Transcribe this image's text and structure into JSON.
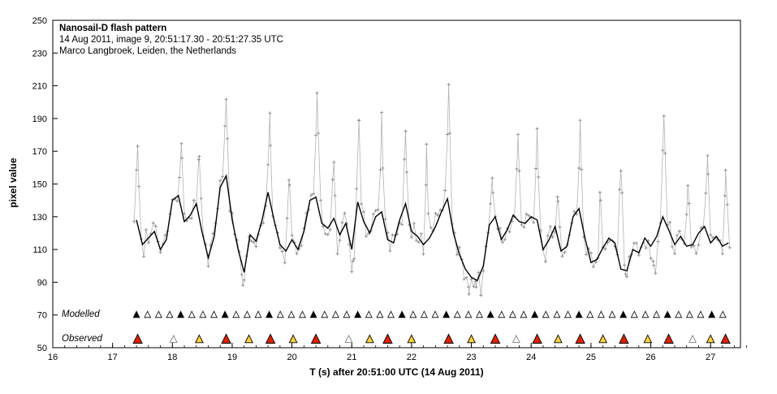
{
  "chart_data": {
    "type": "line",
    "title": "Nanosail-D flash pattern",
    "subtitle": "14 Aug 2011, image 9, 20:51:17.30 - 20:51:27.35 UTC",
    "credit": "Marco Langbroek, Leiden, the Netherlands",
    "xlabel": "T (s) after 20:51:00 UTC (14 Aug 2011)",
    "ylabel": "pixel value",
    "xlim": [
      16,
      27.5
    ],
    "ylim": [
      50,
      250
    ],
    "x_ticks": [
      16,
      17,
      18,
      19,
      20,
      21,
      22,
      23,
      24,
      25,
      26,
      27
    ],
    "x_minor_tick_step": 0.2,
    "y_ticks": [
      50,
      70,
      90,
      110,
      130,
      150,
      170,
      190,
      210,
      230,
      250
    ],
    "grid": false,
    "legend_position": "none",
    "series": [
      {
        "name": "raw pixel values",
        "style": "thin gray line with plus markers"
      },
      {
        "name": "smoothed pixel values",
        "style": "black line"
      }
    ],
    "smoothed": {
      "t_start": 17.4,
      "t_step": 0.1,
      "values": [
        128,
        113,
        117,
        121,
        110,
        116,
        140,
        143,
        127,
        131,
        138,
        120,
        105,
        118,
        148,
        155,
        128,
        110,
        96,
        119,
        115,
        128,
        145,
        128,
        113,
        109,
        116,
        110,
        121,
        140,
        142,
        126,
        123,
        129,
        119,
        126,
        110,
        139,
        127,
        120,
        130,
        133,
        116,
        114,
        128,
        138,
        121,
        118,
        113,
        117,
        124,
        133,
        141,
        120,
        107,
        98,
        93,
        91,
        100,
        125,
        130,
        116,
        122,
        131,
        127,
        126,
        130,
        128,
        110,
        116,
        124,
        109,
        112,
        130,
        135,
        117,
        102,
        104,
        111,
        117,
        114,
        98,
        97,
        110,
        108,
        117,
        112,
        118,
        130,
        122,
        113,
        118,
        112,
        113,
        120,
        124,
        114,
        118,
        112,
        114
      ]
    },
    "flash_excursions": [
      [
        17.42,
        166
      ],
      [
        18.15,
        176
      ],
      [
        18.45,
        170
      ],
      [
        18.9,
        201
      ],
      [
        19.18,
        88
      ],
      [
        19.63,
        191
      ],
      [
        19.95,
        158
      ],
      [
        20.42,
        198
      ],
      [
        20.7,
        160
      ],
      [
        21.02,
        98
      ],
      [
        21.12,
        190
      ],
      [
        21.5,
        186
      ],
      [
        21.9,
        181
      ],
      [
        22.25,
        166
      ],
      [
        22.62,
        210
      ],
      [
        22.95,
        88
      ],
      [
        23.07,
        85
      ],
      [
        23.35,
        152
      ],
      [
        23.78,
        186
      ],
      [
        24.1,
        180
      ],
      [
        24.45,
        150
      ],
      [
        24.82,
        185
      ],
      [
        25.15,
        148
      ],
      [
        25.5,
        172
      ],
      [
        25.58,
        90
      ],
      [
        26.05,
        96
      ],
      [
        26.22,
        194
      ],
      [
        26.62,
        152
      ],
      [
        26.95,
        166
      ],
      [
        27.25,
        156
      ]
    ],
    "raw_synthesis": {
      "t_start": 17.36,
      "t_end": 27.32,
      "step": 0.04,
      "noise_amplitude": 9,
      "outlier_rate": 0.06,
      "outlier_amplitude": 30,
      "excursion_halfwidth": 0.05,
      "seed": 7
    },
    "marker_rows": {
      "modelled": {
        "label": "Modelled",
        "y_value": 70,
        "triangles": [
          [
            17.4,
            1
          ],
          [
            17.585,
            0
          ],
          [
            17.77,
            0
          ],
          [
            17.955,
            0
          ],
          [
            18.14,
            1
          ],
          [
            18.325,
            0
          ],
          [
            18.51,
            0
          ],
          [
            18.695,
            0
          ],
          [
            18.88,
            1
          ],
          [
            19.065,
            0
          ],
          [
            19.25,
            0
          ],
          [
            19.435,
            0
          ],
          [
            19.62,
            1
          ],
          [
            19.805,
            0
          ],
          [
            19.99,
            0
          ],
          [
            20.175,
            0
          ],
          [
            20.36,
            1
          ],
          [
            20.545,
            0
          ],
          [
            20.73,
            0
          ],
          [
            20.915,
            0
          ],
          [
            21.1,
            1
          ],
          [
            21.285,
            0
          ],
          [
            21.47,
            0
          ],
          [
            21.655,
            0
          ],
          [
            21.84,
            1
          ],
          [
            22.025,
            0
          ],
          [
            22.21,
            0
          ],
          [
            22.395,
            0
          ],
          [
            22.58,
            1
          ],
          [
            22.765,
            0
          ],
          [
            22.95,
            0
          ],
          [
            23.135,
            0
          ],
          [
            23.32,
            1
          ],
          [
            23.505,
            0
          ],
          [
            23.69,
            0
          ],
          [
            23.875,
            0
          ],
          [
            24.06,
            1
          ],
          [
            24.245,
            0
          ],
          [
            24.43,
            0
          ],
          [
            24.615,
            0
          ],
          [
            24.8,
            1
          ],
          [
            24.985,
            0
          ],
          [
            25.17,
            0
          ],
          [
            25.355,
            0
          ],
          [
            25.54,
            1
          ],
          [
            25.725,
            0
          ],
          [
            25.91,
            0
          ],
          [
            26.095,
            0
          ],
          [
            26.28,
            1
          ],
          [
            26.465,
            0
          ],
          [
            26.65,
            0
          ],
          [
            26.835,
            0
          ],
          [
            27.02,
            1
          ],
          [
            27.205,
            0
          ]
        ]
      },
      "observed": {
        "label": "Observed",
        "y_value": 55,
        "triangles": [
          [
            17.42,
            "red"
          ],
          [
            18.02,
            "open"
          ],
          [
            18.45,
            "yellow"
          ],
          [
            18.9,
            "red"
          ],
          [
            19.28,
            "yellow"
          ],
          [
            19.64,
            "red"
          ],
          [
            20.02,
            "yellow"
          ],
          [
            20.4,
            "red"
          ],
          [
            20.95,
            "open"
          ],
          [
            21.3,
            "yellow"
          ],
          [
            21.6,
            "red"
          ],
          [
            22.0,
            "yellow"
          ],
          [
            22.62,
            "red"
          ],
          [
            23.0,
            "yellow"
          ],
          [
            23.4,
            "red"
          ],
          [
            23.75,
            "open"
          ],
          [
            24.1,
            "red"
          ],
          [
            24.45,
            "yellow"
          ],
          [
            24.82,
            "red"
          ],
          [
            25.2,
            "yellow"
          ],
          [
            25.55,
            "red"
          ],
          [
            25.95,
            "yellow"
          ],
          [
            26.3,
            "red"
          ],
          [
            26.7,
            "open"
          ],
          [
            27.0,
            "yellow"
          ],
          [
            27.25,
            "red"
          ]
        ]
      }
    }
  },
  "colors": {
    "background": "#ffffff",
    "axis": "#000000",
    "raw_line": "#b3b3b3",
    "raw_marker": "#8c8c8c",
    "smoothed_line": "#000000",
    "modelled_fill": "#000000",
    "triangle_outline": "#000000",
    "observed_red": "#dd2200",
    "observed_yellow": "#ffd23f",
    "open_fill": "#ffffff",
    "open_stroke": "#808080"
  }
}
